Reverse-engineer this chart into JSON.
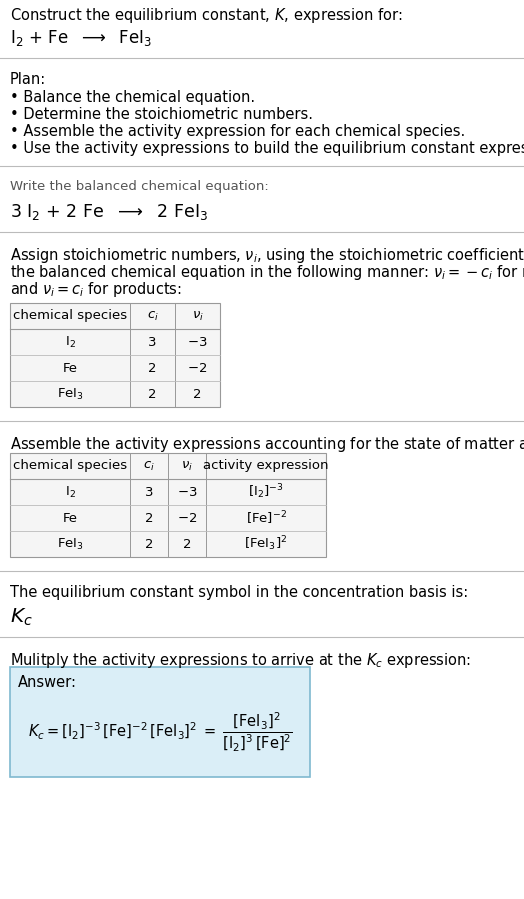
{
  "title_line1": "Construct the equilibrium constant, $K$, expression for:",
  "title_line2": "$\\mathrm{I_2}$ + Fe  $\\longrightarrow$  $\\mathrm{FeI_3}$",
  "plan_header": "Plan:",
  "plan_items": [
    "• Balance the chemical equation.",
    "• Determine the stoichiometric numbers.",
    "• Assemble the activity expression for each chemical species.",
    "• Use the activity expressions to build the equilibrium constant expression."
  ],
  "balanced_header": "Write the balanced chemical equation:",
  "balanced_eq": "3 $\\mathrm{I_2}$ + 2 Fe  $\\longrightarrow$  2 $\\mathrm{FeI_3}$",
  "stoich_intro_lines": [
    "Assign stoichiometric numbers, $\\nu_i$, using the stoichiometric coefficients, $c_i$, from",
    "the balanced chemical equation in the following manner: $\\nu_i = -c_i$ for reactants",
    "and $\\nu_i = c_i$ for products:"
  ],
  "table1_headers": [
    "chemical species",
    "$c_i$",
    "$\\nu_i$"
  ],
  "table1_rows": [
    [
      "$\\mathrm{I_2}$",
      "3",
      "$-3$"
    ],
    [
      "Fe",
      "2",
      "$-2$"
    ],
    [
      "$\\mathrm{FeI_3}$",
      "2",
      "2"
    ]
  ],
  "assemble_intro": "Assemble the activity expressions accounting for the state of matter and $\\nu_i$:",
  "table2_headers": [
    "chemical species",
    "$c_i$",
    "$\\nu_i$",
    "activity expression"
  ],
  "table2_rows": [
    [
      "$\\mathrm{I_2}$",
      "3",
      "$-3$",
      "$[\\mathrm{I_2}]^{-3}$"
    ],
    [
      "Fe",
      "2",
      "$-2$",
      "$[\\mathrm{Fe}]^{-2}$"
    ],
    [
      "$\\mathrm{FeI_3}$",
      "2",
      "2",
      "$[\\mathrm{FeI_3}]^{2}$"
    ]
  ],
  "kc_intro": "The equilibrium constant symbol in the concentration basis is:",
  "kc_symbol": "$K_c$",
  "multiply_intro": "Mulitply the activity expressions to arrive at the $K_c$ expression:",
  "answer_label": "Answer:",
  "bg_color": "#ffffff",
  "answer_bg": "#daeef7",
  "answer_border": "#7fb9d0",
  "text_color": "#000000",
  "divider_color": "#bbbbbb",
  "table_border": "#999999",
  "table_inner": "#bbbbbb",
  "table_bg": "#f5f5f5",
  "font_size": 10.5,
  "small_font_size": 9.5
}
